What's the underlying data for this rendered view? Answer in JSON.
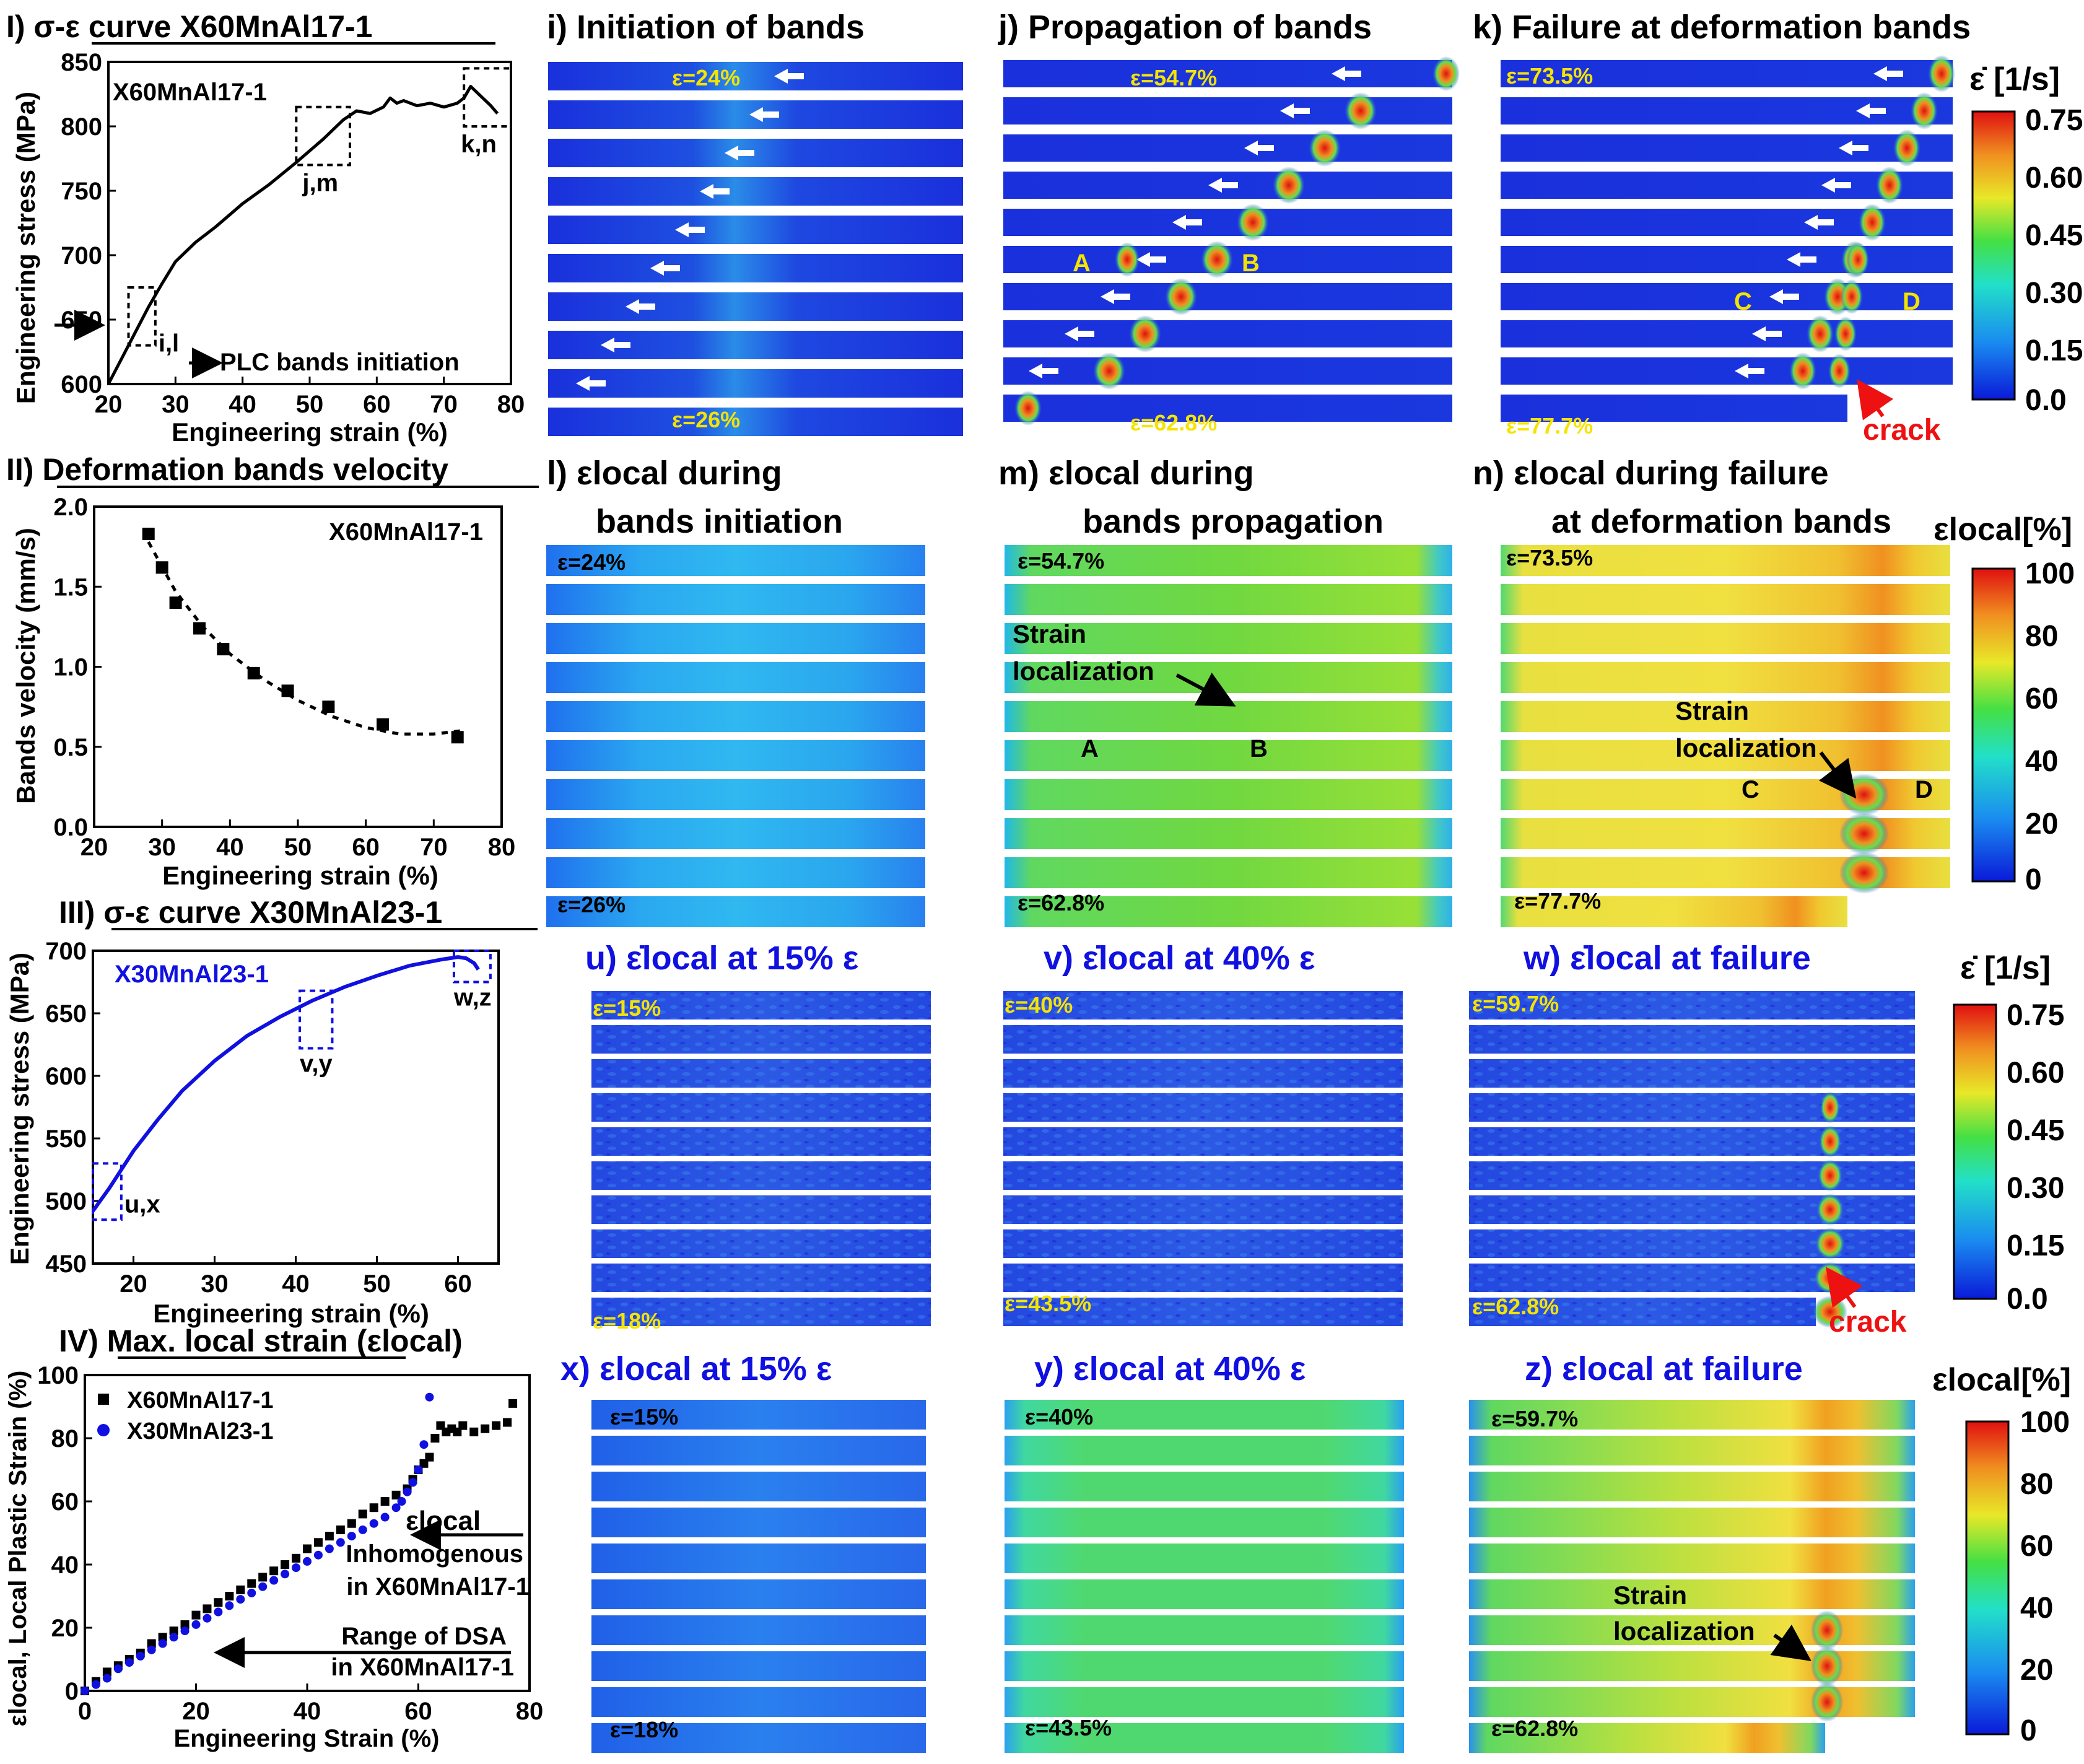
{
  "colors": {
    "map_blue": "#1a2ad8",
    "map_red": "#e01010",
    "label_yellow": "#f5e400",
    "x30_blue": "#1010e0",
    "crack_red": "#ee1111",
    "panel_bg": "#ffffff"
  },
  "sections": {
    "I": "I) σ-ε curve X60MnAl17-1",
    "II": "II) Deformation bands velocity",
    "III": "III) σ-ε curve X30MnAl23-1",
    "IV_pre": "IV) ",
    "IV": "Max. local strain",
    "IV_sym": "(εlocal)"
  },
  "panel_titles": {
    "i": "i) Initiation of bands",
    "j": "j) Propagation of bands",
    "k": "k) Failure at deformation bands",
    "l1": "l) εlocal during",
    "l2": "bands initiation",
    "m1": "m) εlocal during",
    "m2": "bands propagation",
    "n1": "n) εlocal during failure",
    "n2": "at deformation bands",
    "u": "u) ε̇local  at 15% ε",
    "v": "v) ε̇local  at 40% ε",
    "w": "w) ε̇local  at failure",
    "x": "x) εlocal  at 15% ε",
    "y": "y) εlocal  at 40% ε",
    "z": "z) εlocal  at failure"
  },
  "strain_labels": {
    "i_top": "ε=24%",
    "i_bot": "ε=26%",
    "j_top": "ε=54.7%",
    "j_bot": "ε=62.8%",
    "k_top": "ε=73.5%",
    "k_bot": "ε=77.7%",
    "l_top": "ε=24%",
    "l_bot": "ε=26%",
    "m_top": "ε=54.7%",
    "m_bot": "ε=62.8%",
    "n_top": "ε=73.5%",
    "n_bot": "ε=77.7%",
    "u_top": "ε=15%",
    "u_bot": "ε=18%",
    "v_top": "ε=40%",
    "v_bot": "ε=43.5%",
    "w_top": "ε=59.7%",
    "w_bot": "ε=62.8%",
    "x_top": "ε=15%",
    "x_bot": "ε=18%",
    "y_top": "ε=40%",
    "y_bot": "ε=43.5%",
    "z_top": "ε=59.7%",
    "z_bot": "ε=62.8%"
  },
  "annotations": {
    "A": "A",
    "B": "B",
    "C": "C",
    "D": "D",
    "crack": "crack",
    "strain_loc_1": "Strain",
    "strain_loc_2": "localization",
    "plc": "PLC bands initiation",
    "eps_local": "εlocal",
    "inhom1": "Inhomogenous",
    "inhom2": "in X60MnAl17-1",
    "dsa1": "Range of DSA",
    "dsa2": "in X60MnAl17-1"
  },
  "colorbars": {
    "rate_title": "ε̇ [1/s]",
    "rate_ticks": [
      "0.75",
      "0.60",
      "0.45",
      "0.30",
      "0.15",
      "0.0"
    ],
    "local_title": "εlocal[%]",
    "local_ticks": [
      "100",
      "80",
      "60",
      "40",
      "20",
      "0"
    ]
  },
  "chart_data": [
    {
      "id": "I",
      "type": "line",
      "title": "X60MnAl17-1",
      "xlabel": "Engineering strain (%)",
      "ylabel": "Engineering stress (MPa)",
      "xlim": [
        20,
        80
      ],
      "ylim": [
        600,
        850
      ],
      "xticks": [
        "20",
        "30",
        "40",
        "50",
        "60",
        "70",
        "80"
      ],
      "yticks": [
        "600",
        "650",
        "700",
        "750",
        "800",
        "850"
      ],
      "series": [
        {
          "name": "X60MnAl17-1",
          "x": [
            20,
            22,
            24,
            26,
            28,
            30,
            33,
            36,
            40,
            44,
            48,
            52,
            55,
            57,
            59,
            61,
            62,
            63,
            64,
            66,
            68,
            70,
            72,
            73,
            74,
            75,
            76,
            77,
            78
          ],
          "y": [
            600,
            620,
            640,
            660,
            678,
            695,
            710,
            722,
            740,
            755,
            772,
            790,
            805,
            812,
            810,
            815,
            822,
            818,
            820,
            816,
            818,
            815,
            818,
            822,
            831,
            826,
            821,
            816,
            810
          ]
        }
      ],
      "boxes": [
        {
          "label": "i,l",
          "x": [
            23,
            27
          ],
          "y": [
            630,
            675
          ]
        },
        {
          "label": "j,m",
          "x": [
            48,
            56
          ],
          "y": [
            770,
            815
          ]
        },
        {
          "label": "k,n",
          "x": [
            73,
            80
          ],
          "y": [
            800,
            845
          ]
        }
      ]
    },
    {
      "id": "II",
      "type": "scatter",
      "title": "X60MnAl17-1",
      "xlabel": "Engineering strain (%)",
      "ylabel": "Bands velocity (mm/s)",
      "xlim": [
        20,
        80
      ],
      "ylim": [
        0.0,
        2.0
      ],
      "xticks": [
        "20",
        "30",
        "40",
        "50",
        "60",
        "70",
        "80"
      ],
      "yticks": [
        "0.0",
        "0.5",
        "1.0",
        "1.5",
        "2.0"
      ],
      "series": [
        {
          "name": "X60MnAl17-1",
          "x": [
            28,
            30,
            32,
            35.5,
            39,
            43.5,
            48.5,
            54.5,
            62.5,
            73.5
          ],
          "y": [
            1.83,
            1.62,
            1.4,
            1.24,
            1.11,
            0.96,
            0.85,
            0.75,
            0.64,
            0.56
          ]
        }
      ],
      "fit": {
        "x": [
          28,
          32,
          36,
          40,
          45,
          50,
          55,
          60,
          65,
          70,
          74
        ],
        "y": [
          1.78,
          1.47,
          1.25,
          1.08,
          0.92,
          0.79,
          0.69,
          0.62,
          0.58,
          0.58,
          0.6
        ]
      }
    },
    {
      "id": "III",
      "type": "line",
      "title": "X30MnAl23-1",
      "xlabel": "Engineering strain (%)",
      "ylabel": "Engineering stress (MPa)",
      "xlim": [
        15,
        65
      ],
      "ylim": [
        450,
        700
      ],
      "xticks": [
        "20",
        "30",
        "40",
        "50",
        "60"
      ],
      "yticks": [
        "450",
        "500",
        "550",
        "600",
        "650",
        "700"
      ],
      "series": [
        {
          "name": "X30MnAl23-1",
          "x": [
            15,
            17,
            20,
            23,
            26,
            30,
            34,
            38,
            42,
            46,
            50,
            54,
            58,
            60,
            61,
            62,
            62.5
          ],
          "y": [
            492,
            510,
            540,
            565,
            588,
            612,
            632,
            647,
            660,
            671,
            680,
            688,
            693,
            695,
            694,
            690,
            685
          ]
        }
      ],
      "boxes": [
        {
          "label": "u,x",
          "x": [
            15,
            18.5
          ],
          "y": [
            485,
            530
          ]
        },
        {
          "label": "v,y",
          "x": [
            40.5,
            44.5
          ],
          "y": [
            622,
            668
          ]
        },
        {
          "label": "w,z",
          "x": [
            59.5,
            64
          ],
          "y": [
            675,
            700
          ]
        }
      ]
    },
    {
      "id": "IV",
      "type": "scatter",
      "xlabel": "Engineering Strain (%)",
      "ylabel": "εlocal, Local Plastic Strain (%)",
      "xlim": [
        0,
        80
      ],
      "ylim": [
        0,
        100
      ],
      "xticks": [
        "0",
        "20",
        "40",
        "60",
        "80"
      ],
      "yticks": [
        "0",
        "20",
        "40",
        "60",
        "80",
        "100"
      ],
      "series": [
        {
          "name": "X60MnAl17-1",
          "x": [
            0,
            2,
            4,
            6,
            8,
            10,
            12,
            14,
            16,
            18,
            20,
            22,
            24,
            26,
            28,
            30,
            32,
            34,
            36,
            38,
            40,
            42,
            44,
            46,
            48,
            50,
            52,
            54,
            56,
            58,
            59,
            60,
            61,
            62,
            63,
            64,
            65,
            66,
            67,
            68,
            70,
            72,
            74,
            76,
            77
          ],
          "y": [
            0,
            3,
            6,
            8,
            10,
            12,
            15,
            17,
            19,
            21,
            24,
            26,
            28,
            30,
            32,
            34,
            36,
            38,
            40,
            42,
            45,
            47,
            49,
            51,
            53,
            56,
            58,
            60,
            62,
            64,
            67,
            70,
            72,
            74,
            80,
            84,
            82,
            83,
            82,
            84,
            82,
            83,
            84,
            85,
            91
          ]
        },
        {
          "name": "X30MnAl23-1",
          "x": [
            0,
            2,
            4,
            6,
            8,
            10,
            12,
            14,
            16,
            18,
            20,
            22,
            24,
            26,
            28,
            30,
            32,
            34,
            36,
            38,
            40,
            42,
            44,
            46,
            48,
            50,
            52,
            54,
            56,
            57,
            58,
            59,
            60,
            61,
            62
          ],
          "y": [
            0,
            2,
            4,
            7,
            9,
            11,
            13,
            15,
            17,
            19,
            21,
            23,
            25,
            27,
            29,
            31,
            33,
            35,
            37,
            39,
            41,
            43,
            45,
            47,
            49,
            51,
            53,
            55,
            58,
            60,
            63,
            66,
            70,
            78,
            93
          ]
        }
      ]
    },
    {
      "id": "i",
      "type": "heatmap",
      "quantity": "strain rate",
      "strain_start": 24,
      "strain_end": 26,
      "rows": 10
    },
    {
      "id": "j",
      "type": "heatmap",
      "quantity": "strain rate",
      "strain_start": 54.7,
      "strain_end": 62.8,
      "rows": 10
    },
    {
      "id": "k",
      "type": "heatmap",
      "quantity": "strain rate",
      "strain_start": 73.5,
      "strain_end": 77.7,
      "rows": 10
    },
    {
      "id": "l",
      "type": "heatmap",
      "quantity": "local strain",
      "strain_start": 24,
      "strain_end": 26,
      "rows": 10
    },
    {
      "id": "m",
      "type": "heatmap",
      "quantity": "local strain",
      "strain_start": 54.7,
      "strain_end": 62.8,
      "rows": 10
    },
    {
      "id": "n",
      "type": "heatmap",
      "quantity": "local strain",
      "strain_start": 73.5,
      "strain_end": 77.7,
      "rows": 10
    },
    {
      "id": "u",
      "type": "heatmap",
      "quantity": "strain rate",
      "strain_start": 15,
      "strain_end": 18,
      "rows": 10
    },
    {
      "id": "v",
      "type": "heatmap",
      "quantity": "strain rate",
      "strain_start": 40,
      "strain_end": 43.5,
      "rows": 10
    },
    {
      "id": "w",
      "type": "heatmap",
      "quantity": "strain rate",
      "strain_start": 59.7,
      "strain_end": 62.8,
      "rows": 10
    },
    {
      "id": "x",
      "type": "heatmap",
      "quantity": "local strain",
      "strain_start": 15,
      "strain_end": 18,
      "rows": 10
    },
    {
      "id": "y",
      "type": "heatmap",
      "quantity": "local strain",
      "strain_start": 40,
      "strain_end": 43.5,
      "rows": 10
    },
    {
      "id": "z",
      "type": "heatmap",
      "quantity": "local strain",
      "strain_start": 59.7,
      "strain_end": 62.8,
      "rows": 10
    }
  ]
}
